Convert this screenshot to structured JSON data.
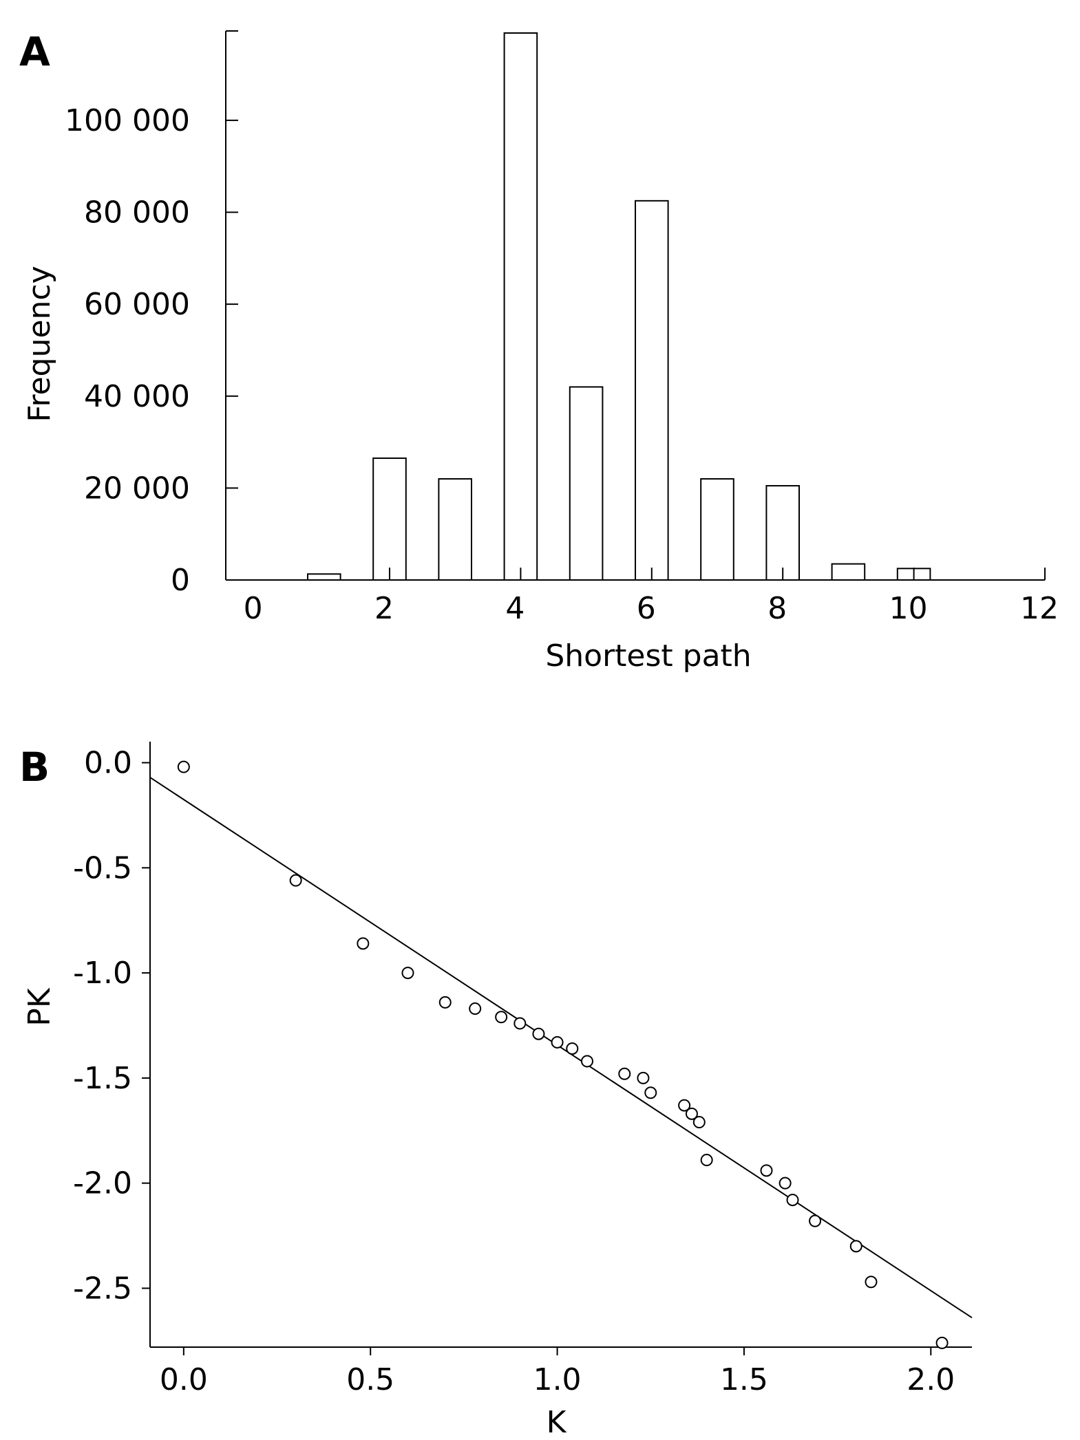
{
  "chart_data": [
    {
      "panel": "A",
      "type": "bar",
      "xlabel": "Shortest path",
      "ylabel": "Frequency",
      "xlim": [
        -0.5,
        12
      ],
      "ylim": [
        0,
        119000
      ],
      "xticks": [
        0,
        2,
        4,
        6,
        8,
        10,
        12
      ],
      "xtick_labels": [
        "0",
        "2",
        "4",
        "6",
        "8",
        "10",
        "12"
      ],
      "yticks": [
        0,
        20000,
        40000,
        60000,
        80000,
        100000
      ],
      "ytick_labels": [
        "0",
        "20 000",
        "40 000",
        "60 000",
        "80 000",
        "100 000"
      ],
      "categories": [
        1,
        2,
        3,
        4,
        5,
        6,
        7,
        8,
        9,
        10
      ],
      "values": [
        1300,
        26500,
        22000,
        119000,
        42000,
        82500,
        22000,
        20500,
        3500,
        2500
      ]
    },
    {
      "panel": "B",
      "type": "scatter",
      "xlabel": "K",
      "ylabel": "PK",
      "xlim": [
        -0.09,
        2.11
      ],
      "ylim": [
        -2.78,
        0.1
      ],
      "xticks": [
        0.0,
        0.5,
        1.0,
        1.5,
        2.0
      ],
      "xtick_labels": [
        "0.0",
        "0.5",
        "1.0",
        "1.5",
        "2.0"
      ],
      "yticks": [
        0.0,
        -0.5,
        -1.0,
        -1.5,
        -2.0,
        -2.5
      ],
      "ytick_labels": [
        "0.0",
        "-0.5",
        "-1.0",
        "-1.5",
        "-2.0",
        "-2.5"
      ],
      "points": [
        {
          "x": 0.0,
          "y": -0.02
        },
        {
          "x": 0.3,
          "y": -0.56
        },
        {
          "x": 0.48,
          "y": -0.86
        },
        {
          "x": 0.6,
          "y": -1.0
        },
        {
          "x": 0.7,
          "y": -1.14
        },
        {
          "x": 0.78,
          "y": -1.17
        },
        {
          "x": 0.85,
          "y": -1.21
        },
        {
          "x": 0.9,
          "y": -1.24
        },
        {
          "x": 0.95,
          "y": -1.29
        },
        {
          "x": 1.0,
          "y": -1.33
        },
        {
          "x": 1.04,
          "y": -1.36
        },
        {
          "x": 1.08,
          "y": -1.42
        },
        {
          "x": 1.18,
          "y": -1.48
        },
        {
          "x": 1.23,
          "y": -1.5
        },
        {
          "x": 1.25,
          "y": -1.57
        },
        {
          "x": 1.34,
          "y": -1.63
        },
        {
          "x": 1.36,
          "y": -1.67
        },
        {
          "x": 1.38,
          "y": -1.71
        },
        {
          "x": 1.4,
          "y": -1.89
        },
        {
          "x": 1.56,
          "y": -1.94
        },
        {
          "x": 1.61,
          "y": -2.0
        },
        {
          "x": 1.63,
          "y": -2.08
        },
        {
          "x": 1.69,
          "y": -2.18
        },
        {
          "x": 1.8,
          "y": -2.3
        },
        {
          "x": 1.84,
          "y": -2.47
        },
        {
          "x": 2.03,
          "y": -2.76
        }
      ],
      "fit_line": {
        "x": [
          -0.09,
          2.11
        ],
        "y": [
          -0.07,
          -2.64
        ]
      }
    }
  ],
  "panel_labels": [
    "A",
    "B"
  ]
}
